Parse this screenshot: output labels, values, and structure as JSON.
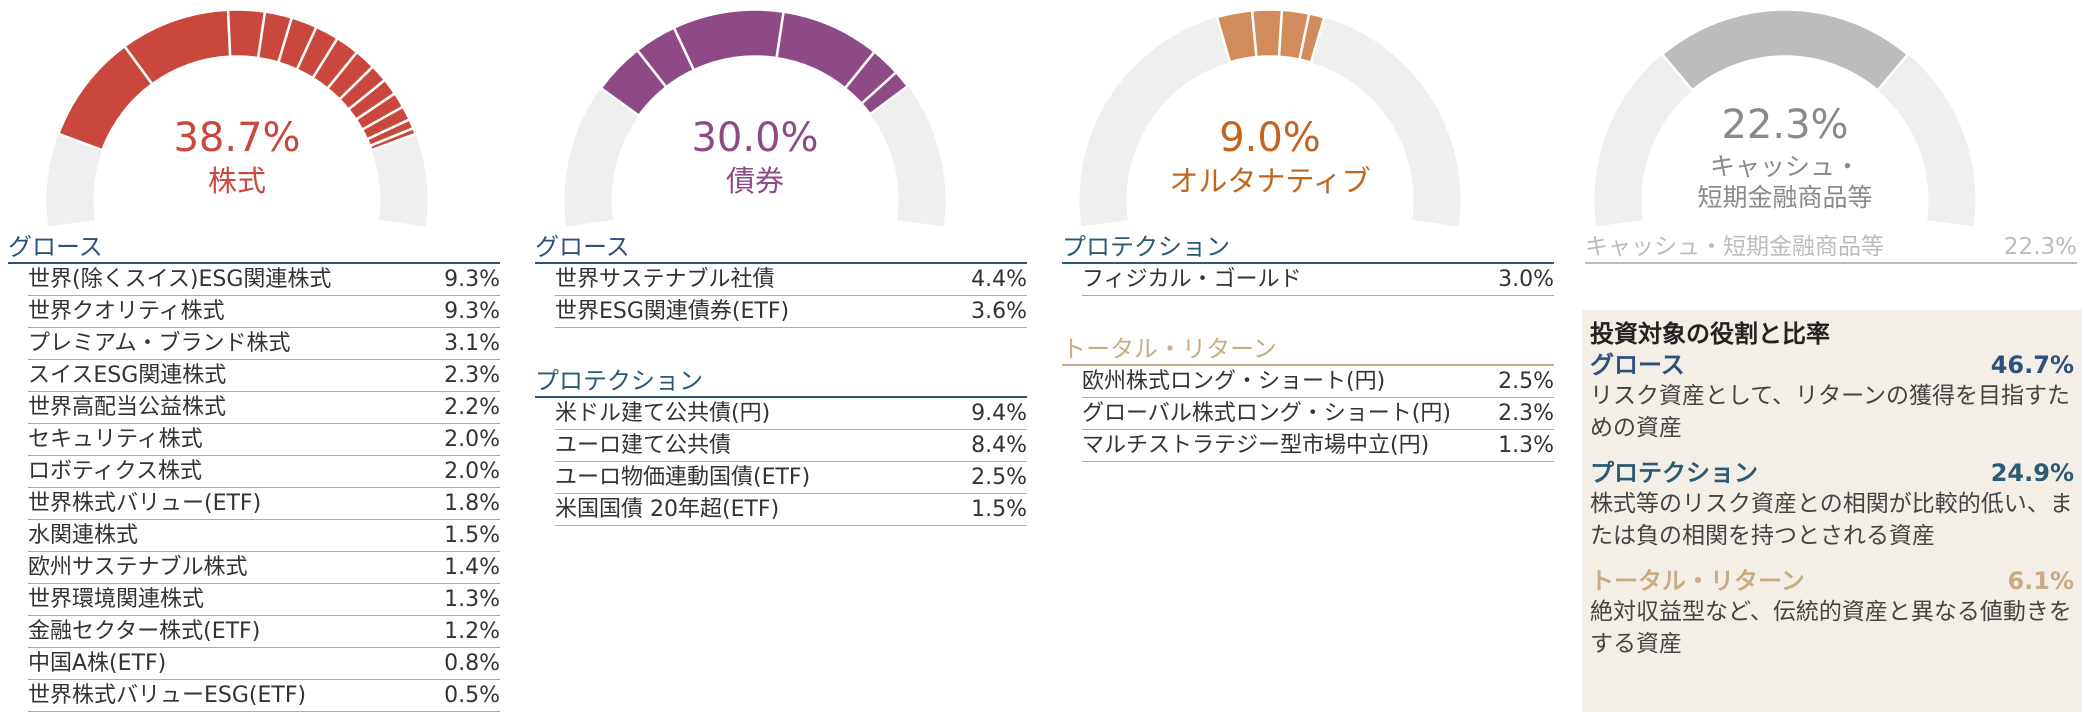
{
  "panels": [
    {
      "total": 38.7,
      "total_label": "38.7%",
      "category": [
        "株式"
      ],
      "color": "#c9473c",
      "text_color": "#c9473c",
      "groups": [
        {
          "name": "グロース",
          "color": "#2f4f7f",
          "items": [
            {
              "name": "世界(除くスイス)ESG関連株式",
              "value": 9.3,
              "value_label": "9.3%"
            },
            {
              "name": "世界クオリティ株式",
              "value": 9.3,
              "value_label": "9.3%"
            },
            {
              "name": "プレミアム・ブランド株式",
              "value": 3.1,
              "value_label": "3.1%"
            },
            {
              "name": "スイスESG関連株式",
              "value": 2.3,
              "value_label": "2.3%"
            },
            {
              "name": "世界高配当公益株式",
              "value": 2.2,
              "value_label": "2.2%"
            },
            {
              "name": "セキュリティ株式",
              "value": 2.0,
              "value_label": "2.0%"
            },
            {
              "name": "ロボティクス株式",
              "value": 2.0,
              "value_label": "2.0%"
            },
            {
              "name": "世界株式バリュー(ETF)",
              "value": 1.8,
              "value_label": "1.8%"
            },
            {
              "name": "水関連株式",
              "value": 1.5,
              "value_label": "1.5%"
            },
            {
              "name": "欧州サステナブル株式",
              "value": 1.4,
              "value_label": "1.4%"
            },
            {
              "name": "世界環境関連株式",
              "value": 1.3,
              "value_label": "1.3%"
            },
            {
              "name": "金融セクター株式(ETF)",
              "value": 1.2,
              "value_label": "1.2%"
            },
            {
              "name": "中国A株(ETF)",
              "value": 0.8,
              "value_label": "0.8%"
            },
            {
              "name": "世界株式バリューESG(ETF)",
              "value": 0.5,
              "value_label": "0.5%"
            }
          ]
        }
      ]
    },
    {
      "total": 30.0,
      "total_label": "30.0%",
      "category": [
        "債券"
      ],
      "color": "#8e4a87",
      "text_color": "#8e4a87",
      "groups": [
        {
          "name": "グロース",
          "color": "#2f4f7f",
          "items": [
            {
              "name": "世界サステナブル社債",
              "value": 4.4,
              "value_label": "4.4%"
            },
            {
              "name": "世界ESG関連債券(ETF)",
              "value": 3.6,
              "value_label": "3.6%"
            }
          ]
        },
        {
          "name": "プロテクション",
          "color": "#2b5a73",
          "items": [
            {
              "name": "米ドル建て公共債(円)",
              "value": 9.4,
              "value_label": "9.4%"
            },
            {
              "name": "ユーロ建て公共債",
              "value": 8.4,
              "value_label": "8.4%"
            },
            {
              "name": "ユーロ物価連動国債(ETF)",
              "value": 2.5,
              "value_label": "2.5%"
            },
            {
              "name": "米国国債 20年超(ETF)",
              "value": 1.5,
              "value_label": "1.5%"
            }
          ]
        }
      ]
    },
    {
      "total": 9.0,
      "total_label": "9.0%",
      "category": [
        "オルタナティブ"
      ],
      "color": "#d28b5a",
      "text_color": "#c2651f",
      "groups": [
        {
          "name": "プロテクション",
          "color": "#2b5a73",
          "items": [
            {
              "name": "フィジカル・ゴールド",
              "value": 3.0,
              "value_label": "3.0%"
            }
          ]
        },
        {
          "name": "トータル・リターン",
          "color": "#c8ad84",
          "items": [
            {
              "name": "欧州株式ロング・ショート(円)",
              "value": 2.5,
              "value_label": "2.5%"
            },
            {
              "name": "グローバル株式ロング・ショート(円)",
              "value": 2.3,
              "value_label": "2.3%"
            },
            {
              "name": "マルチストラテジー型市場中立(円)",
              "value": 1.3,
              "value_label": "1.3%"
            }
          ]
        }
      ]
    },
    {
      "total": 22.3,
      "total_label": "22.3%",
      "category": [
        "キャッシュ・",
        "短期金融商品等"
      ],
      "color": "#bcbcbc",
      "text_color": "#8a8a8a",
      "groups": [
        {
          "name": "キャッシュ・短期金融商品等",
          "color": "#bcbcbc",
          "items": [
            {
              "name": "キャッシュ・短期金融商品等",
              "value": 22.3,
              "value_label": "22.3%"
            }
          ]
        }
      ]
    }
  ],
  "roles_box": {
    "title": "投資対象の役割と比率",
    "roles": [
      {
        "name": "グロース",
        "value": "46.7%",
        "color": "#2f4f7f",
        "description": "リスク資産として、リターンの獲得を目指すための資産"
      },
      {
        "name": "プロテクション",
        "value": "24.9%",
        "color": "#2b5a73",
        "description": "株式等のリスク資産との相関が比較的低い、または負の相関を持つとされる資産"
      },
      {
        "name": "トータル・リターン",
        "value": "6.1%",
        "color": "#c8ad84",
        "description": "絶対収益型など、伝統的資産と異なる値動きをする資産"
      }
    ]
  }
}
